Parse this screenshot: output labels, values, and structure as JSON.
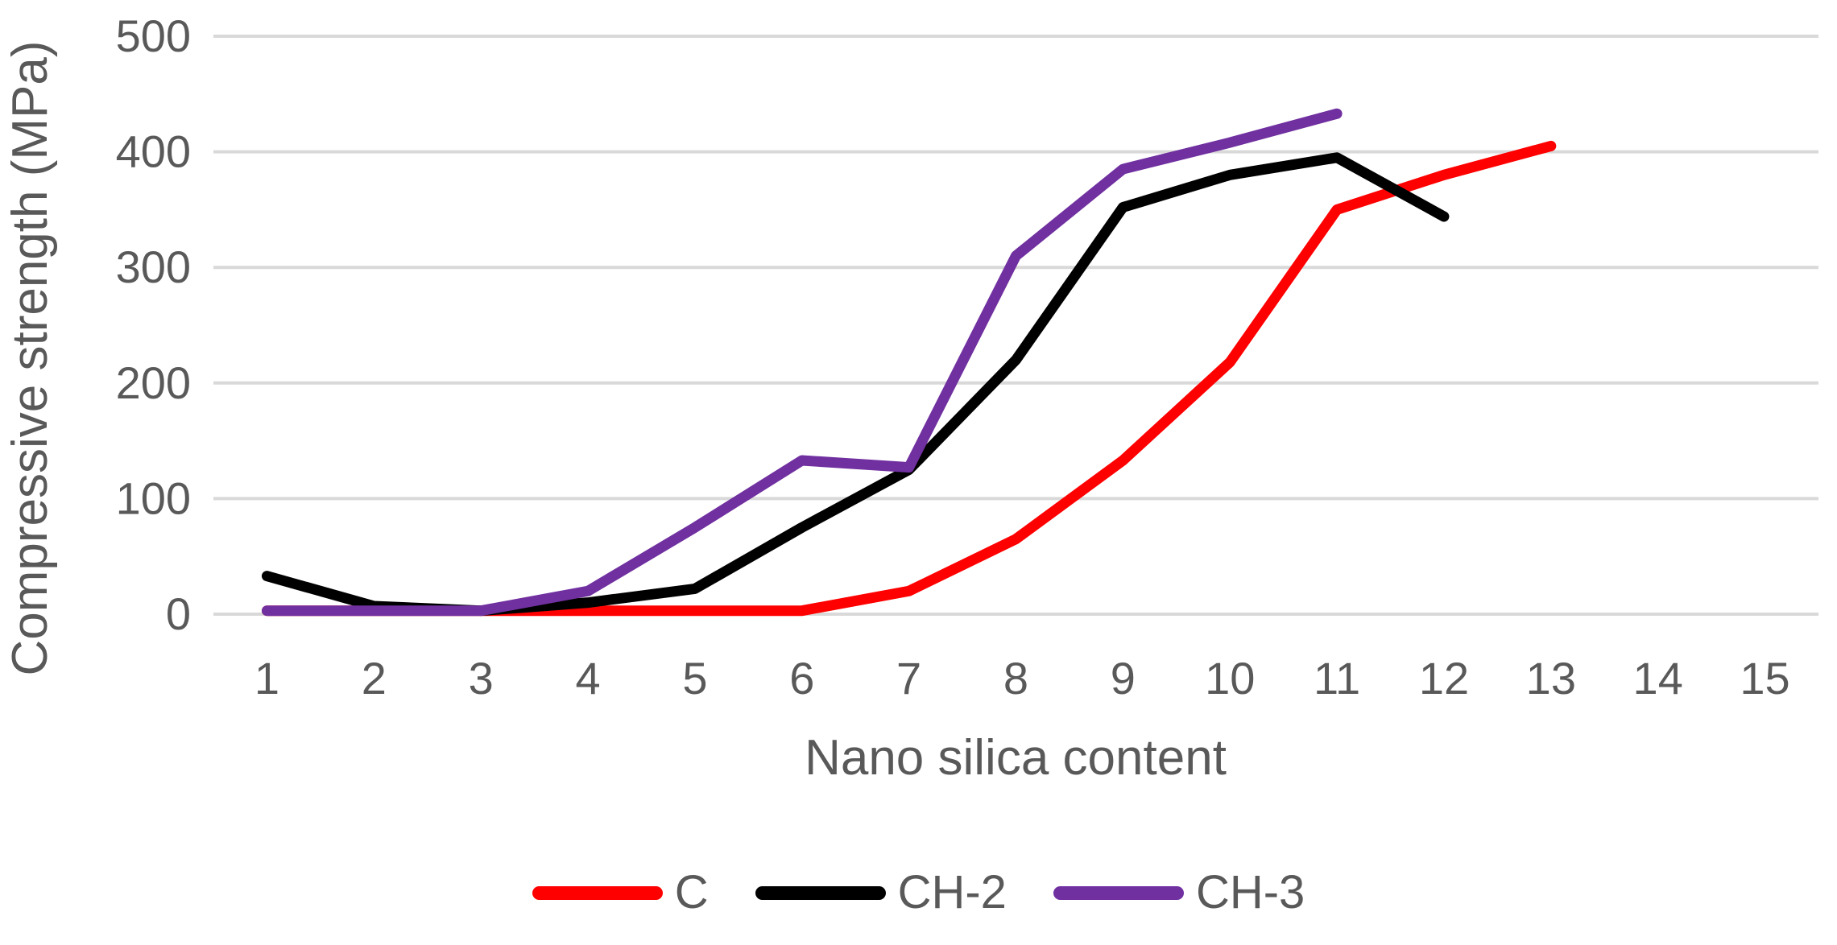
{
  "chart_data": {
    "type": "line",
    "title": "",
    "xlabel": "Nano silica content",
    "ylabel": "Compressive strength (MPa)",
    "x": [
      1,
      2,
      3,
      4,
      5,
      6,
      7,
      8,
      9,
      10,
      11,
      12,
      13,
      14,
      15
    ],
    "yticks": [
      0,
      100,
      200,
      300,
      400,
      500
    ],
    "ylim": [
      0,
      500
    ],
    "grid": "horizontal",
    "legend_position": "bottom-center",
    "series": [
      {
        "name": "C",
        "color": "#ff0000",
        "values": [
          3,
          3,
          3,
          3,
          3,
          3,
          20,
          65,
          133,
          218,
          350,
          380,
          405
        ]
      },
      {
        "name": "CH-2",
        "color": "#000000",
        "values": [
          33,
          7,
          3,
          10,
          22,
          75,
          125,
          220,
          352,
          380,
          395,
          344
        ]
      },
      {
        "name": "CH-3",
        "color": "#7030a0",
        "values": [
          3,
          3,
          3,
          20,
          75,
          133,
          127,
          310,
          385,
          408,
          433
        ]
      }
    ]
  },
  "colors": {
    "gridline": "#d9d9d9",
    "axis_text": "#595959",
    "background": "#ffffff"
  }
}
